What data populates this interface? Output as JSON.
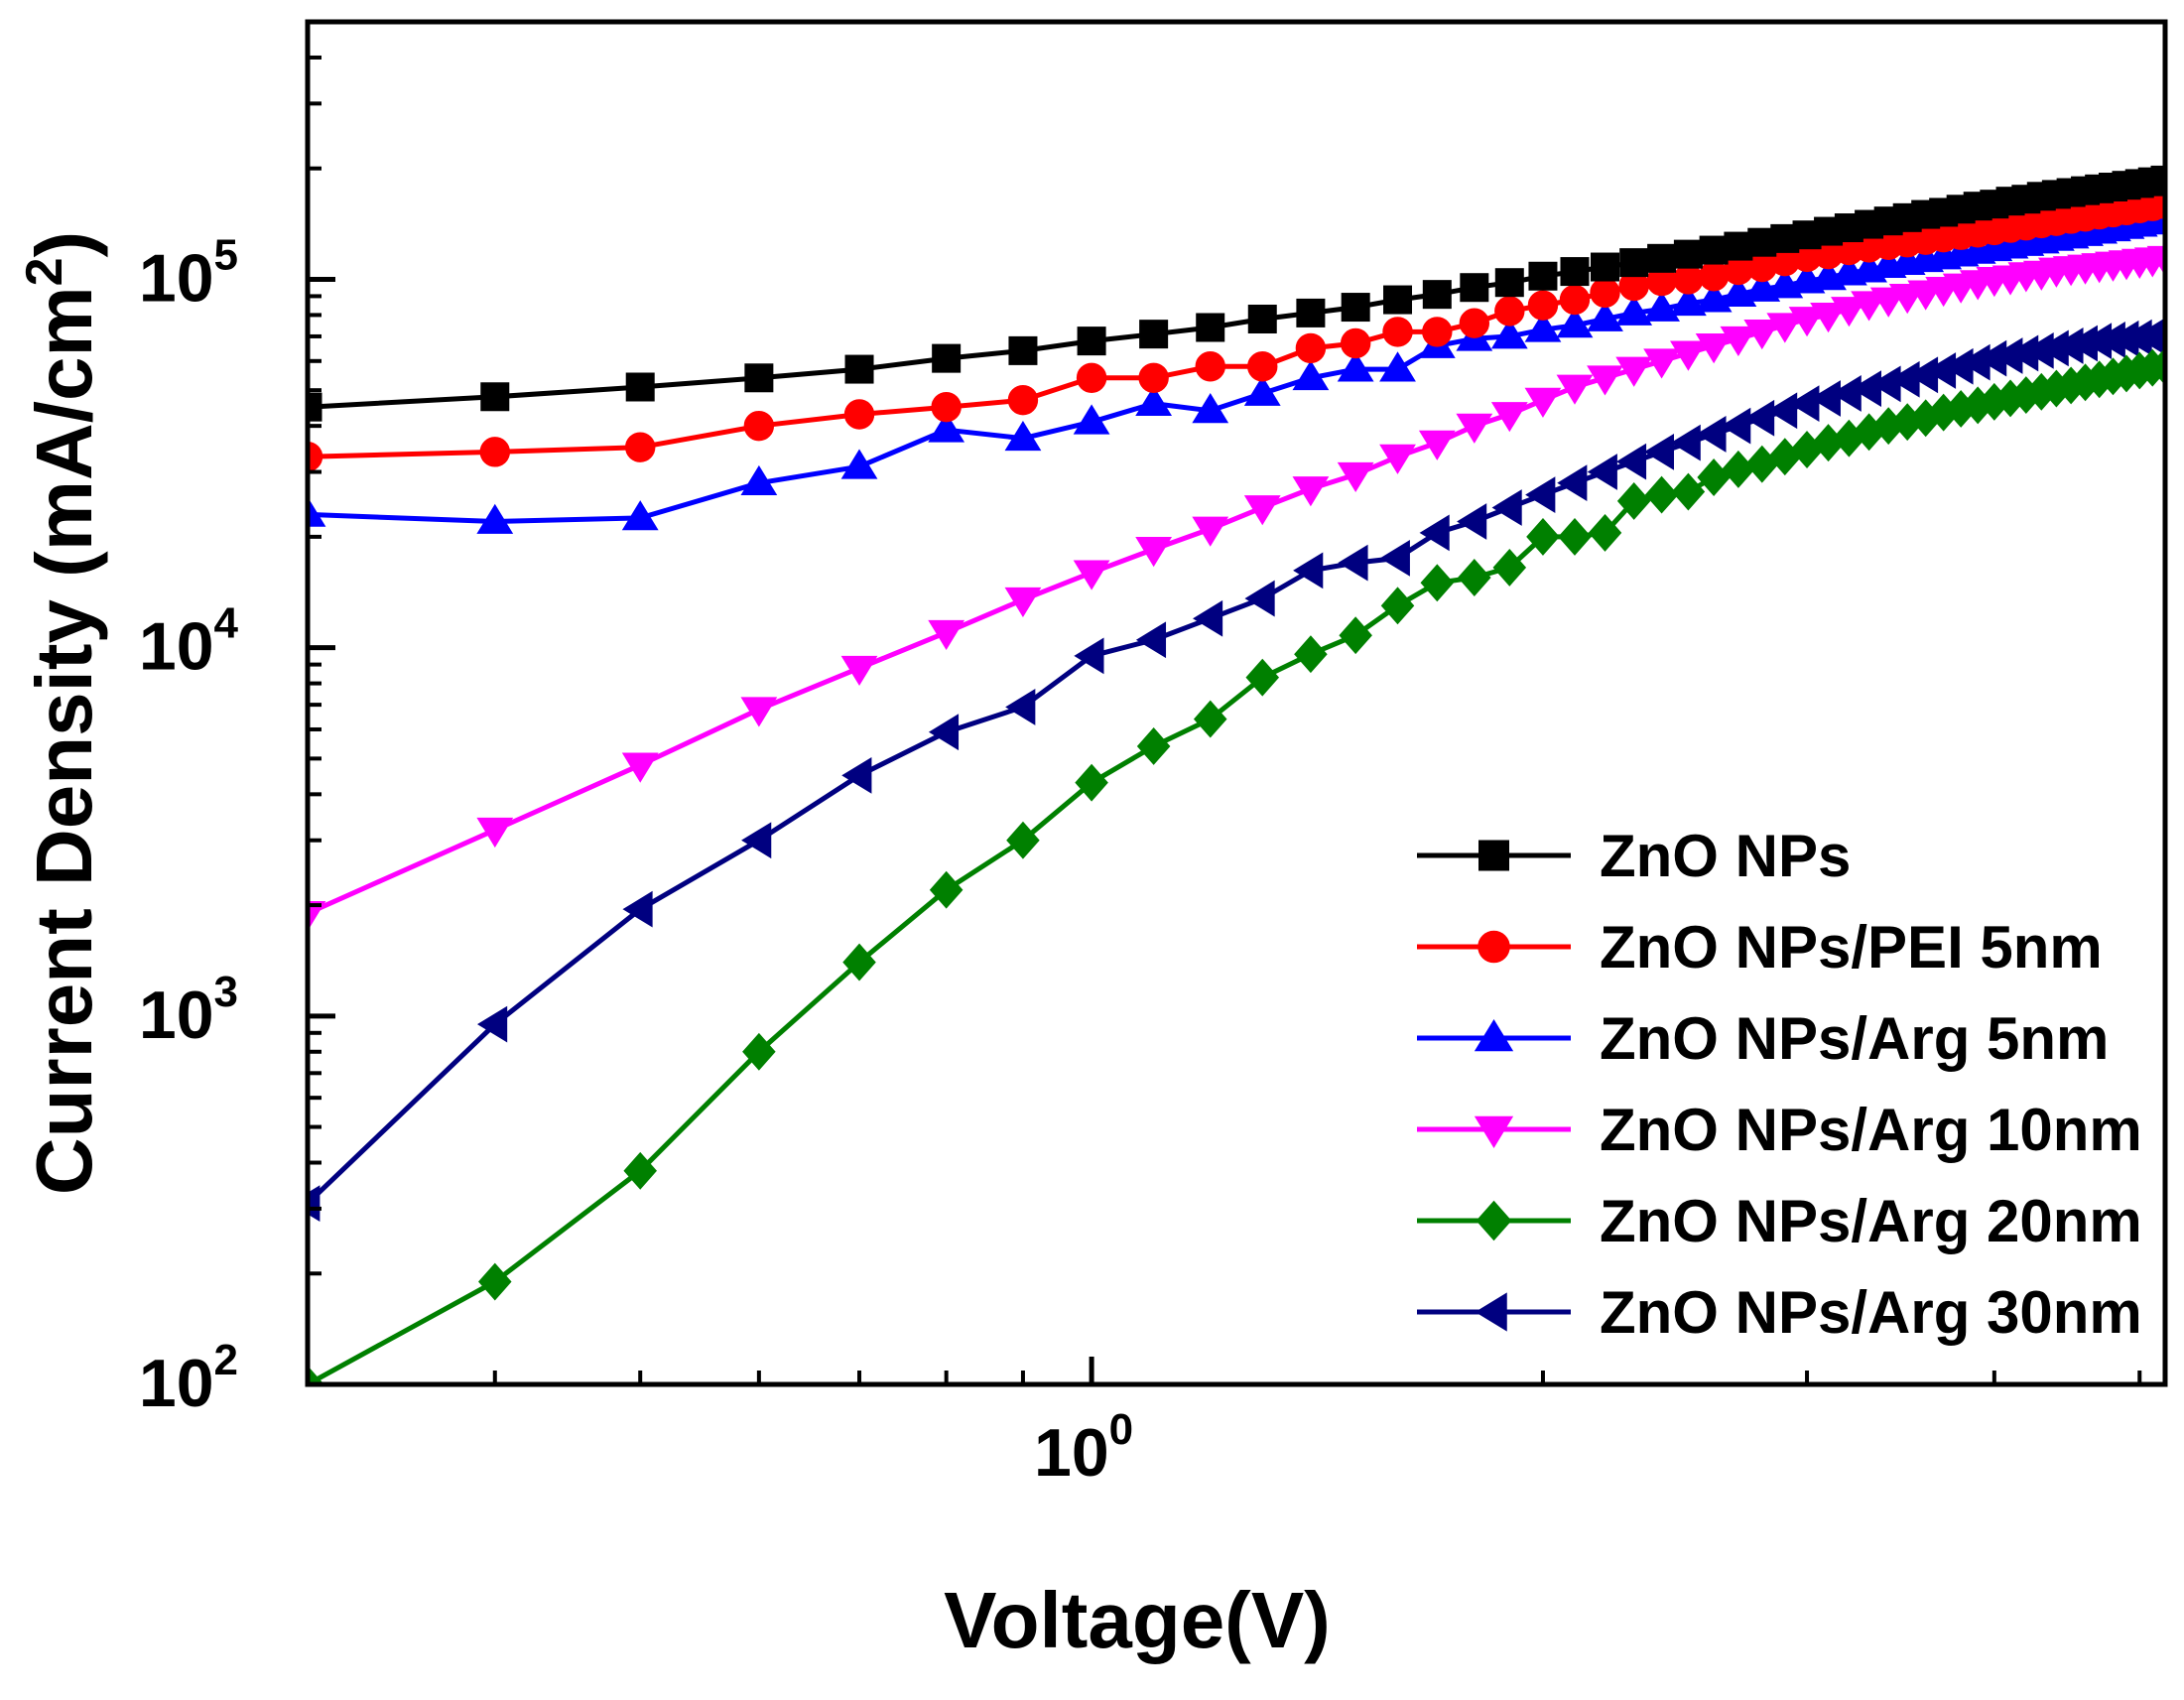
{
  "chart_data": {
    "type": "line",
    "title": "",
    "xlabel": "Voltage(V)",
    "ylabel": "Current Density (mA/cm",
    "ylabel_sup": "2",
    "ylabel_close": ")",
    "xscale": "log",
    "yscale": "log",
    "xlim": [
      0.3,
      5.2
    ],
    "ylim": [
      100,
      500000
    ],
    "x_ticks": [
      {
        "base": "10",
        "exp": "0",
        "value": 1
      }
    ],
    "y_ticks": [
      {
        "base": "10",
        "exp": "2",
        "value": 100
      },
      {
        "base": "10",
        "exp": "3",
        "value": 1000
      },
      {
        "base": "10",
        "exp": "4",
        "value": 10000
      },
      {
        "base": "10",
        "exp": "5",
        "value": 100000
      }
    ],
    "legend_position": "bottom-right",
    "x": [
      0.3,
      0.4,
      0.5,
      0.6,
      0.7,
      0.8,
      0.9,
      1.0,
      1.1,
      1.2,
      1.3,
      1.4,
      1.5,
      1.6,
      1.7,
      1.8,
      1.9,
      2.0,
      2.1,
      2.2,
      2.3,
      2.4,
      2.5,
      2.6,
      2.7,
      2.8,
      2.9,
      3.0,
      3.1,
      3.2,
      3.3,
      3.4,
      3.5,
      3.6,
      3.7,
      3.8,
      3.9,
      4.0,
      4.1,
      4.2,
      4.3,
      4.4,
      4.5,
      4.6,
      4.7,
      4.8,
      4.9,
      5.0,
      5.1,
      5.2
    ],
    "series": [
      {
        "name": "ZnO NPs",
        "color": "#000000",
        "marker": "square",
        "values": [
          45000,
          48000,
          51000,
          54000,
          57000,
          61000,
          64000,
          68000,
          71000,
          74000,
          78000,
          81000,
          84000,
          88000,
          91000,
          95000,
          98000,
          102000,
          105000,
          108000,
          111000,
          114000,
          117000,
          120000,
          123000,
          126000,
          129000,
          132000,
          135000,
          138000,
          141000,
          144000,
          147000,
          150000,
          152000,
          155000,
          158000,
          160000,
          163000,
          165000,
          168000,
          170000,
          172000,
          174000,
          176000,
          178000,
          180000,
          182000,
          184000,
          186000
        ]
      },
      {
        "name": "ZnO NPs/PEI 5nm",
        "color": "#ff0000",
        "marker": "circle",
        "values": [
          33000,
          34000,
          35000,
          40000,
          43000,
          45000,
          47000,
          54000,
          54000,
          58000,
          58000,
          65000,
          67000,
          72000,
          72000,
          76000,
          82000,
          85000,
          88000,
          92000,
          96000,
          99000,
          100000,
          102000,
          106000,
          108000,
          112000,
          115000,
          117000,
          120000,
          122000,
          124000,
          126000,
          128000,
          130000,
          132000,
          134000,
          136000,
          138000,
          140000,
          142000,
          144000,
          146000,
          148000,
          150000,
          152000,
          154000,
          156000,
          158000,
          160000
        ]
      },
      {
        "name": "ZnO NPs/Arg 5nm",
        "color": "#0000ff",
        "marker": "triangle-up",
        "values": [
          23000,
          22000,
          22500,
          28000,
          31000,
          39000,
          37000,
          41000,
          46000,
          44000,
          49000,
          54000,
          57000,
          57000,
          66000,
          69000,
          70000,
          73000,
          75000,
          78000,
          81000,
          83000,
          86000,
          88000,
          91000,
          94000,
          96000,
          99000,
          101000,
          104000,
          106000,
          109000,
          111000,
          113000,
          115000,
          117000,
          119000,
          121000,
          123000,
          125000,
          127000,
          129000,
          131000,
          133000,
          135000,
          137000,
          139000,
          141000,
          143000,
          145000
        ]
      },
      {
        "name": "ZnO NPs/Arg 10nm",
        "color": "#ff00ff",
        "marker": "triangle-down",
        "values": [
          1900,
          3200,
          4800,
          6800,
          8800,
          11000,
          13500,
          16000,
          18500,
          21000,
          24000,
          27000,
          29500,
          33000,
          36000,
          40000,
          43000,
          47000,
          51000,
          54000,
          57000,
          60000,
          63000,
          66000,
          69000,
          72000,
          75000,
          78000,
          80000,
          83000,
          86000,
          88000,
          90000,
          92000,
          94000,
          96000,
          98000,
          100000,
          101000,
          103000,
          104000,
          106000,
          107000,
          108000,
          109000,
          110000,
          111000,
          112000,
          113000,
          114000
        ]
      },
      {
        "name": "ZnO NPs/Arg 20nm",
        "color": "#008000",
        "marker": "diamond",
        "values": [
          100,
          190,
          380,
          800,
          1400,
          2200,
          3000,
          4300,
          5400,
          6400,
          8300,
          9600,
          10800,
          13000,
          15000,
          15500,
          16500,
          20000,
          20000,
          20500,
          25000,
          26000,
          26500,
          29000,
          30500,
          31500,
          33000,
          34500,
          36000,
          37000,
          38500,
          40000,
          41000,
          42000,
          43500,
          44500,
          45500,
          46500,
          47500,
          48500,
          49500,
          50500,
          51500,
          52500,
          53500,
          54500,
          55500,
          56500,
          57500,
          58000
        ]
      },
      {
        "name": "ZnO NPs/Arg 30nm",
        "color": "#000080",
        "marker": "triangle-left",
        "values": [
          310,
          950,
          1950,
          3000,
          4500,
          5900,
          6900,
          9500,
          10500,
          12000,
          13600,
          16200,
          17000,
          17500,
          20500,
          22000,
          24000,
          26000,
          28000,
          30000,
          32000,
          34000,
          36000,
          38000,
          40000,
          42000,
          44000,
          46000,
          47500,
          49000,
          50500,
          52000,
          53500,
          55000,
          56500,
          58000,
          59500,
          61000,
          62000,
          63000,
          64000,
          65000,
          66000,
          67000,
          68000,
          68500,
          69000,
          69500,
          70000,
          70500
        ]
      }
    ]
  }
}
